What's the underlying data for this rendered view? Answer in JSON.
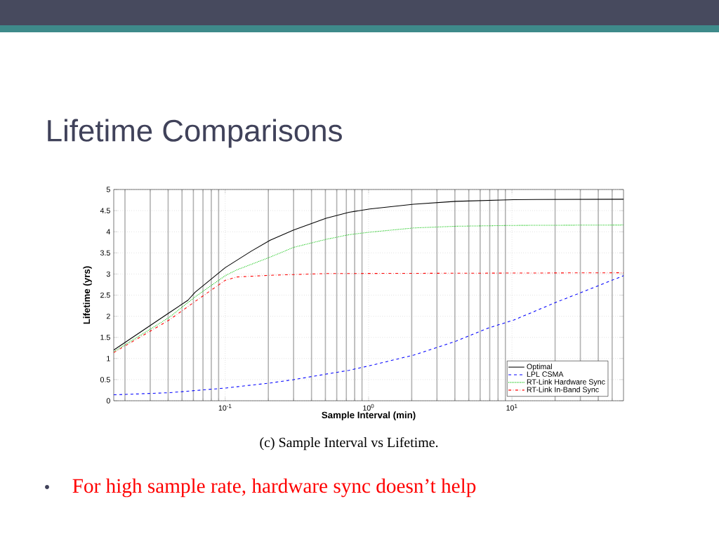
{
  "chart_data": {
    "type": "line",
    "title": "Lifetime Comparisons",
    "xlabel": "Sample Interval (min)",
    "ylabel": "Lifetime (yrs)",
    "annotations": [
      "(c)  Sample Interval vs Lifetime.",
      "For high sample rate, hardware sync doesn’t help"
    ],
    "log": "x",
    "grid": true,
    "legend": "bottom right",
    "xlim": [
      0.0167,
      60
    ],
    "xticks": [
      {
        "value": 0.1,
        "label": "10$^{-1}$"
      },
      {
        "value": 1,
        "label": "10$^{0}$"
      },
      {
        "value": 10,
        "label": "10$^{1}$"
      }
    ],
    "ylim": [
      0,
      5
    ],
    "yticks": [
      0,
      0.5,
      1,
      1.5,
      2,
      2.5,
      3,
      3.5,
      4,
      4.5,
      5
    ],
    "series": [
      {
        "name": "Optimal",
        "color": "#000000",
        "line_style": "solid",
        "x": [
          0.0167,
          0.0406,
          0.055,
          0.0617,
          0.1,
          0.152,
          0.206,
          0.3,
          0.505,
          0.73,
          1.02,
          2.06,
          4.07,
          10.3,
          60
        ],
        "values": [
          1.2,
          2.08,
          2.38,
          2.57,
          3.15,
          3.54,
          3.8,
          4.04,
          4.32,
          4.46,
          4.54,
          4.65,
          4.72,
          4.76,
          4.77
        ]
      },
      {
        "name": "LPL CSMA",
        "color": "#0000ff",
        "line_style": "dashed",
        "x": [
          0.0167,
          0.0406,
          0.1,
          0.206,
          0.3,
          0.505,
          0.73,
          1.02,
          2.06,
          4.07,
          6.83,
          10.3,
          20.3,
          30.8,
          60
        ],
        "values": [
          0.14,
          0.19,
          0.3,
          0.42,
          0.5,
          0.63,
          0.72,
          0.83,
          1.08,
          1.41,
          1.72,
          1.91,
          2.33,
          2.57,
          2.96
        ]
      },
      {
        "name": "RT-Link Hardware Sync",
        "color": "#00c000",
        "line_style": "dotted",
        "x": [
          0.0167,
          0.0406,
          0.0617,
          0.1,
          0.121,
          0.206,
          0.3,
          0.505,
          0.73,
          1.02,
          2.06,
          4.07,
          10.3,
          60
        ],
        "values": [
          1.16,
          1.97,
          2.46,
          2.96,
          3.1,
          3.4,
          3.63,
          3.82,
          3.93,
          3.99,
          4.09,
          4.13,
          4.15,
          4.16
        ]
      },
      {
        "name": "RT-Link In-Band Sync",
        "color": "#ff0000",
        "line_style": "dashdot",
        "x": [
          0.0167,
          0.0406,
          0.0617,
          0.1,
          0.121,
          0.206,
          0.505,
          60
        ],
        "values": [
          1.14,
          1.91,
          2.35,
          2.85,
          2.93,
          2.97,
          3.01,
          3.03
        ]
      }
    ]
  }
}
